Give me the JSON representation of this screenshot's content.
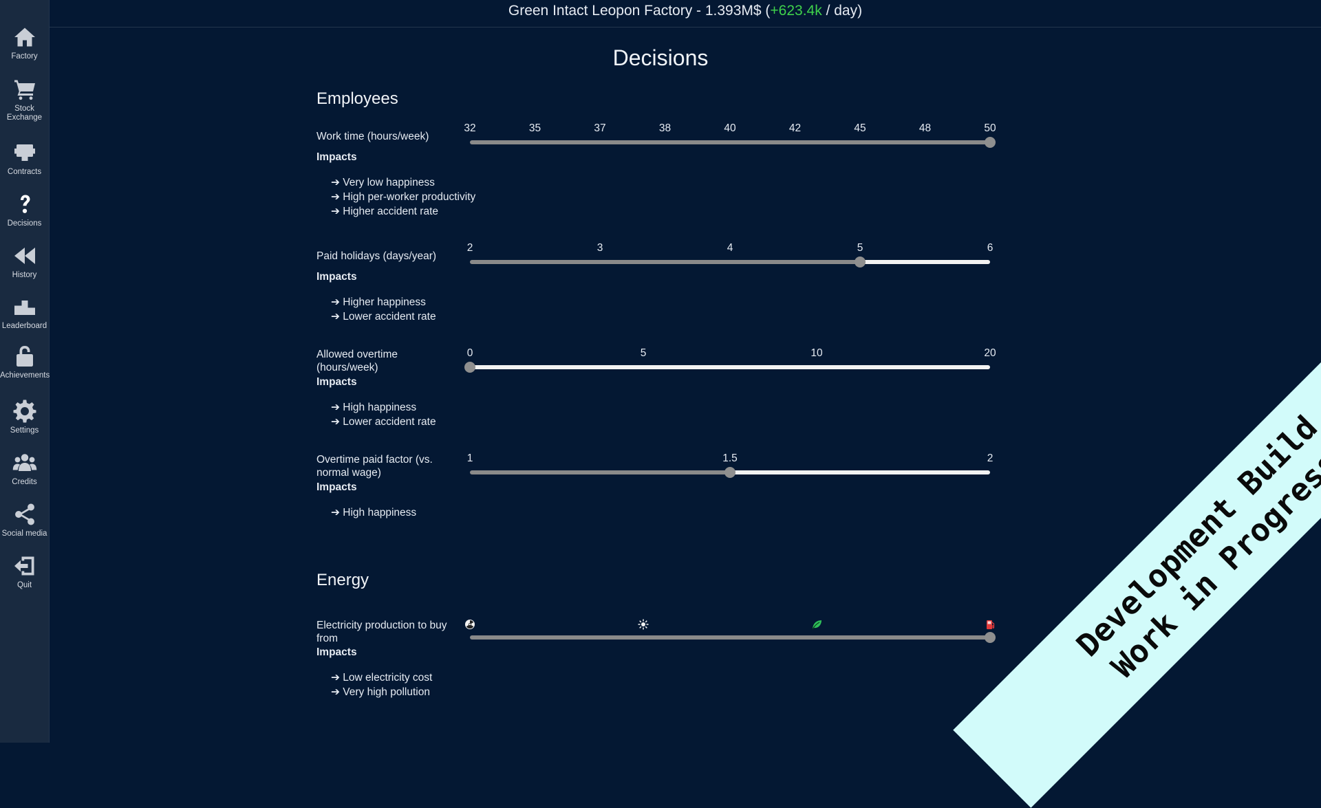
{
  "header": {
    "prefix": "Green Intact Leopon Factory - 1.393M$ (",
    "gain": "+623.4k",
    "suffix": " / day)"
  },
  "sidebar": {
    "items": [
      {
        "label": "Factory",
        "icon": "home-icon"
      },
      {
        "label": "Stock\nExchange",
        "icon": "cart-icon"
      },
      {
        "label": "Contracts",
        "icon": "contracts-icon"
      },
      {
        "label": "Decisions",
        "icon": "question-icon"
      },
      {
        "label": "History",
        "icon": "rewind-icon"
      },
      {
        "label": "Leaderboard",
        "icon": "podium-icon"
      },
      {
        "label": "Achievements",
        "icon": "lock-icon"
      },
      {
        "label": "Settings",
        "icon": "gear-icon"
      },
      {
        "label": "Credits",
        "icon": "people-icon"
      },
      {
        "label": "Social media",
        "icon": "share-icon"
      },
      {
        "label": "Quit",
        "icon": "exit-icon"
      }
    ]
  },
  "page_title": "Decisions",
  "employees": {
    "title": "Employees",
    "impacts_label": "Impacts",
    "work_time": {
      "label": "Work time (hours/week)",
      "ticks": [
        "32",
        "35",
        "37",
        "38",
        "40",
        "42",
        "45",
        "48",
        "50"
      ],
      "selected_index": 8,
      "impacts": [
        "➔ Very low happiness",
        "➔ High per-worker productivity",
        "➔ Higher accident rate"
      ]
    },
    "paid_holidays": {
      "label": "Paid holidays (days/year)",
      "ticks": [
        "2",
        "3",
        "4",
        "5",
        "6"
      ],
      "selected_index": 3,
      "impacts": [
        "➔ Higher happiness",
        "➔ Lower accident rate"
      ]
    },
    "allowed_overtime": {
      "label": "Allowed overtime (hours/week)",
      "ticks": [
        "0",
        "5",
        "10",
        "20"
      ],
      "selected_index": 0,
      "impacts": [
        "➔ High happiness",
        "➔ Lower accident rate"
      ]
    },
    "overtime_factor": {
      "label": "Overtime paid factor (vs. normal wage)",
      "ticks": [
        "1",
        "1.5",
        "2"
      ],
      "selected_index": 1,
      "impacts": [
        "➔ High happiness"
      ]
    }
  },
  "energy": {
    "title": "Energy",
    "impacts_label": "Impacts",
    "electricity": {
      "label": "Electricity production to buy from",
      "tick_icons": [
        "nuclear-icon",
        "sun-icon",
        "leaf-icon",
        "fuel-icon"
      ],
      "selected_index": 3,
      "impacts": [
        "➔ Low electricity cost",
        "➔ Very high pollution"
      ]
    }
  },
  "dev_banner": {
    "line1": "Development Build",
    "line2": "Work in Progress"
  },
  "colors": {
    "background": "#041833",
    "sidebar": "#192a40",
    "gain": "#3fd14b",
    "banner": "#d2fbfa"
  }
}
